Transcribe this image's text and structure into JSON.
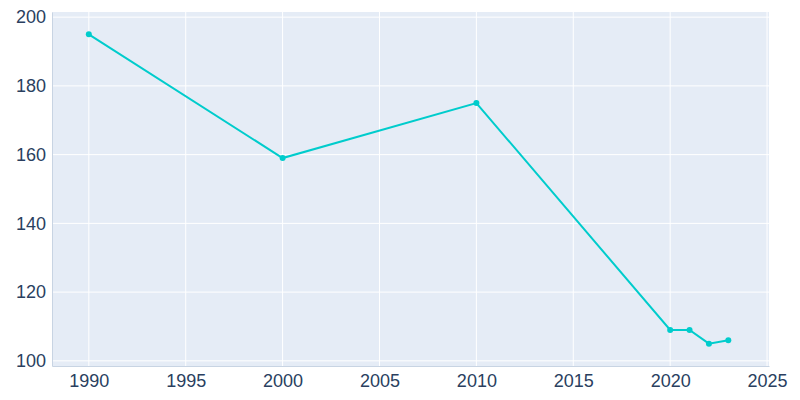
{
  "chart_data": {
    "type": "line",
    "x": [
      1990,
      2000,
      2010,
      2020,
      2021,
      2022,
      2023
    ],
    "values": [
      195,
      159,
      175,
      109,
      109,
      105,
      106
    ],
    "color": "#00cccc",
    "marker": "circle",
    "xlim": [
      1988.1,
      2025.1
    ],
    "xticks": [
      1990,
      1995,
      2000,
      2005,
      2010,
      2015,
      2020,
      2025
    ],
    "ylim": [
      98.5,
      201.5
    ],
    "yticks": [
      100,
      120,
      140,
      160,
      180,
      200
    ],
    "grid": true
  }
}
